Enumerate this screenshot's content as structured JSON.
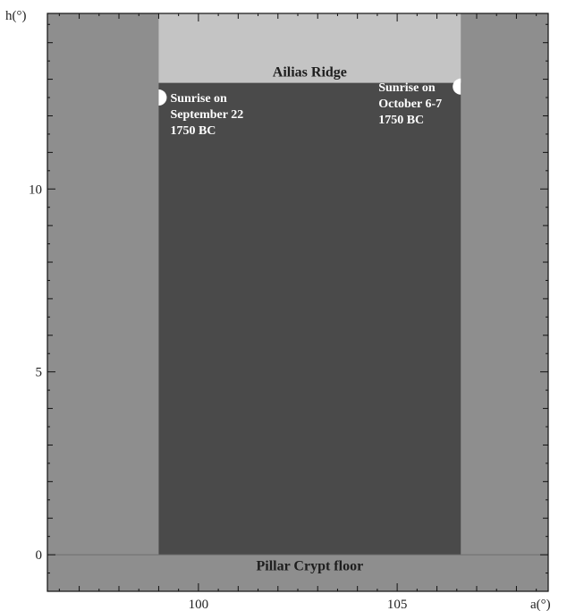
{
  "chart_data": {
    "type": "area",
    "xlabel": "a(°)",
    "ylabel": "h(°)",
    "xlim": [
      96.2,
      108.8
    ],
    "ylim": [
      -1.0,
      14.8
    ],
    "x_ticks": [
      {
        "value": 100,
        "label": "100"
      },
      {
        "value": 105,
        "label": "105"
      }
    ],
    "y_ticks": [
      {
        "value": 0,
        "label": "0"
      },
      {
        "value": 5,
        "label": "5"
      },
      {
        "value": 10,
        "label": "10"
      }
    ],
    "regions": [
      {
        "name": "Ailias Ridge",
        "label": "Ailias Ridge",
        "x_range": [
          99.0,
          106.6
        ],
        "y_top": 14.8,
        "y_bottom": 12.9,
        "label_at": [
          102.8,
          13.2
        ],
        "color": "#c4c4c4"
      },
      {
        "name": "opening",
        "x_range": [
          99.0,
          106.6
        ],
        "y_top": 12.9,
        "y_bottom": 0.0,
        "color": "#4a4a4a"
      },
      {
        "name": "Pillar Crypt floor",
        "label": "Pillar Crypt floor",
        "x_range": [
          96.2,
          108.8
        ],
        "y_top": 0.0,
        "y_bottom": -1.0,
        "label_at": [
          102.8,
          -0.3
        ],
        "color": "#8e8e8e"
      }
    ],
    "wall_color": "#8e8e8e",
    "annotations": [
      {
        "lines": [
          "Sunrise on",
          "September 22",
          "1750 BC"
        ],
        "x": 99.0,
        "y": 12.5,
        "anchor": "left"
      },
      {
        "lines": [
          "Sunrise on",
          "October 6-7",
          "1750 BC"
        ],
        "x": 106.6,
        "y": 12.8,
        "anchor": "right"
      }
    ],
    "grid": false
  }
}
